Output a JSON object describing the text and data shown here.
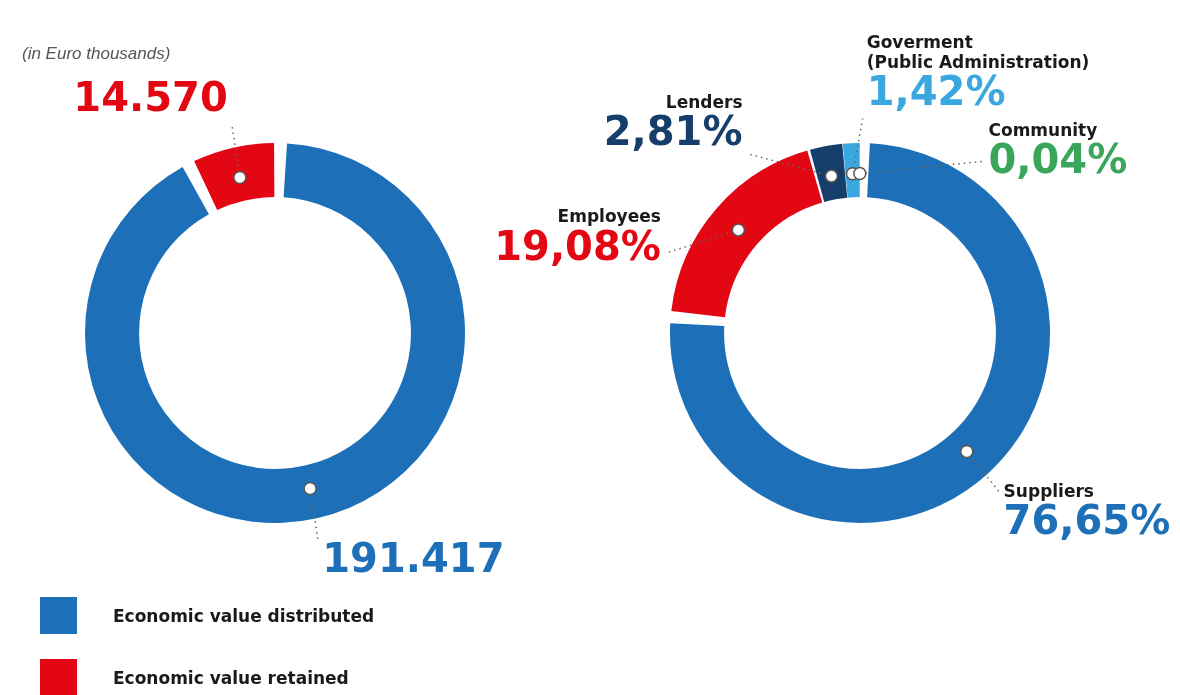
{
  "chart_data": [
    {
      "type": "donut",
      "subtitle": "(in Euro thousands)",
      "categories": [
        "Economic value distributed",
        "Economic value retained"
      ],
      "values": [
        191417,
        14570
      ],
      "colors": [
        "#1d70b7",
        "#e30613"
      ],
      "value_labels": [
        "191.417",
        "14.570"
      ],
      "legend": "bottom left"
    },
    {
      "type": "donut",
      "categories": [
        "Suppliers",
        "Employees",
        "Lenders",
        "Goverment\n(Public Administration)",
        "Community"
      ],
      "values": [
        76.65,
        19.08,
        2.81,
        1.42,
        0.04
      ],
      "colors": [
        "#1d70b7",
        "#e30613",
        "#163e6a",
        "#3aa7de",
        "#3aa65c"
      ],
      "value_labels": [
        "76,65%",
        "19,08%",
        "2,81%",
        "1,42%",
        "0,04%"
      ]
    }
  ]
}
